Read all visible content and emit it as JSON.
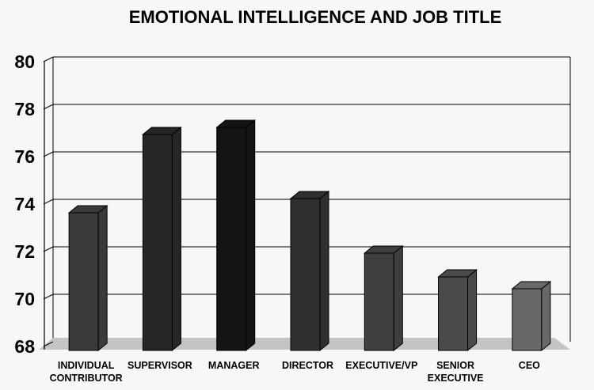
{
  "chart_data": {
    "type": "bar",
    "title": "EMOTIONAL INTELLIGENCE AND JOB TITLE",
    "xlabel": "",
    "ylabel": "",
    "categories": [
      [
        "INDIVIDUAL",
        "CONTRIBUTOR"
      ],
      [
        "SUPERVISOR"
      ],
      [
        "MANAGER"
      ],
      [
        "DIRECTOR"
      ],
      [
        "EXECUTIVE/VP"
      ],
      [
        "SENIOR",
        "EXECUTIVE"
      ],
      [
        "CEO"
      ]
    ],
    "values": [
      73.8,
      77.1,
      77.4,
      74.4,
      72.1,
      71.1,
      70.6
    ],
    "ylim": [
      68,
      80
    ],
    "yticks": [
      68,
      70,
      72,
      74,
      76,
      78,
      80
    ],
    "grid": true,
    "legend": "none",
    "colors": {
      "background": "#f7f7f7",
      "grid": "#000000",
      "floor": "#c4c4c4",
      "bars": [
        "#3a3a3a",
        "#262626",
        "#141414",
        "#2f2f2f",
        "#3f3f3f",
        "#4a4a4a",
        "#686868"
      ]
    }
  }
}
